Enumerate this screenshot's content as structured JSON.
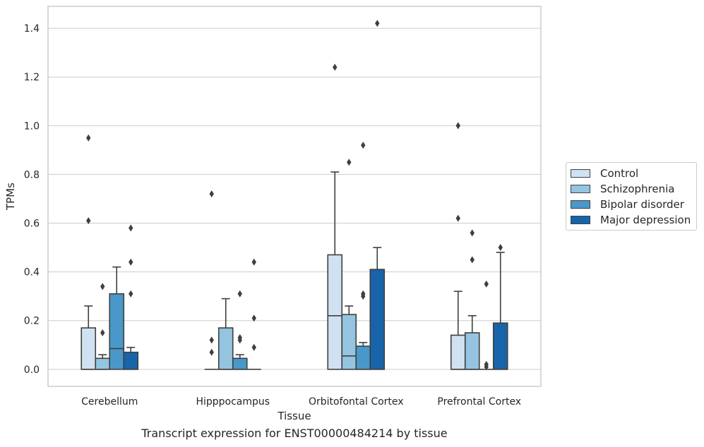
{
  "caption": "Transcript expression for ENST00000484214 by tissue",
  "chart_data": {
    "type": "box",
    "title": "",
    "xlabel": "Tissue",
    "ylabel": "TPMs",
    "ylim": [
      -0.07,
      1.49
    ],
    "yticks": [
      0.0,
      0.2,
      0.4,
      0.6,
      0.8,
      1.0,
      1.2,
      1.4
    ],
    "ytick_labels": [
      "0.0",
      "0.2",
      "0.4",
      "0.6",
      "0.8",
      "1.0",
      "1.2",
      "1.4"
    ],
    "grid": "horizontal",
    "legend_position": "right",
    "categories": [
      "Cerebellum",
      "Hipppocampus",
      "Orbitofontal Cortex",
      "Prefrontal Cortex"
    ],
    "series": [
      {
        "name": "Control",
        "color": "#d0e1f2",
        "boxes": [
          {
            "q1": 0.0,
            "median": 0.0,
            "q3": 0.17,
            "whisker_low": 0.0,
            "whisker_high": 0.26,
            "outliers": [
              0.61,
              0.95
            ]
          },
          {
            "q1": 0.0,
            "median": 0.0,
            "q3": 0.0,
            "whisker_low": 0.0,
            "whisker_high": 0.0,
            "outliers": [
              0.07,
              0.12,
              0.72
            ]
          },
          {
            "q1": 0.0,
            "median": 0.22,
            "q3": 0.47,
            "whisker_low": 0.0,
            "whisker_high": 0.81,
            "outliers": [
              1.24
            ]
          },
          {
            "q1": 0.0,
            "median": 0.0,
            "q3": 0.14,
            "whisker_low": 0.0,
            "whisker_high": 0.32,
            "outliers": [
              0.62,
              1.0
            ]
          }
        ]
      },
      {
        "name": "Schizophrenia",
        "color": "#94c4df",
        "boxes": [
          {
            "q1": 0.0,
            "median": 0.0,
            "q3": 0.045,
            "whisker_low": 0.0,
            "whisker_high": 0.06,
            "outliers": [
              0.15,
              0.34
            ]
          },
          {
            "q1": 0.0,
            "median": 0.0,
            "q3": 0.17,
            "whisker_low": 0.0,
            "whisker_high": 0.29,
            "outliers": []
          },
          {
            "q1": 0.0,
            "median": 0.055,
            "q3": 0.225,
            "whisker_low": 0.0,
            "whisker_high": 0.26,
            "outliers": [
              0.85
            ]
          },
          {
            "q1": 0.0,
            "median": 0.0,
            "q3": 0.15,
            "whisker_low": 0.0,
            "whisker_high": 0.22,
            "outliers": [
              0.45,
              0.56
            ]
          }
        ]
      },
      {
        "name": "Bipolar disorder",
        "color": "#4a98c9",
        "boxes": [
          {
            "q1": 0.0,
            "median": 0.085,
            "q3": 0.31,
            "whisker_low": 0.0,
            "whisker_high": 0.42,
            "outliers": []
          },
          {
            "q1": 0.0,
            "median": 0.0,
            "q3": 0.045,
            "whisker_low": 0.0,
            "whisker_high": 0.06,
            "outliers": [
              0.12,
              0.13,
              0.31
            ]
          },
          {
            "q1": 0.0,
            "median": 0.0,
            "q3": 0.095,
            "whisker_low": 0.0,
            "whisker_high": 0.11,
            "outliers": [
              0.3,
              0.31,
              0.92
            ]
          },
          {
            "q1": 0.0,
            "median": 0.0,
            "q3": 0.0,
            "whisker_low": 0.0,
            "whisker_high": 0.0,
            "outliers": [
              0.01,
              0.02,
              0.35
            ]
          }
        ]
      },
      {
        "name": "Major depression",
        "color": "#1764ab",
        "boxes": [
          {
            "q1": 0.0,
            "median": 0.0,
            "q3": 0.07,
            "whisker_low": 0.0,
            "whisker_high": 0.09,
            "outliers": [
              0.31,
              0.44,
              0.58
            ]
          },
          {
            "q1": 0.0,
            "median": 0.0,
            "q3": 0.0,
            "whisker_low": 0.0,
            "whisker_high": 0.0,
            "outliers": [
              0.09,
              0.21,
              0.44
            ]
          },
          {
            "q1": 0.0,
            "median": 0.0,
            "q3": 0.41,
            "whisker_low": 0.0,
            "whisker_high": 0.5,
            "outliers": [
              1.42
            ]
          },
          {
            "q1": 0.0,
            "median": 0.0,
            "q3": 0.19,
            "whisker_low": 0.0,
            "whisker_high": 0.48,
            "outliers": [
              0.5
            ]
          }
        ]
      }
    ]
  }
}
